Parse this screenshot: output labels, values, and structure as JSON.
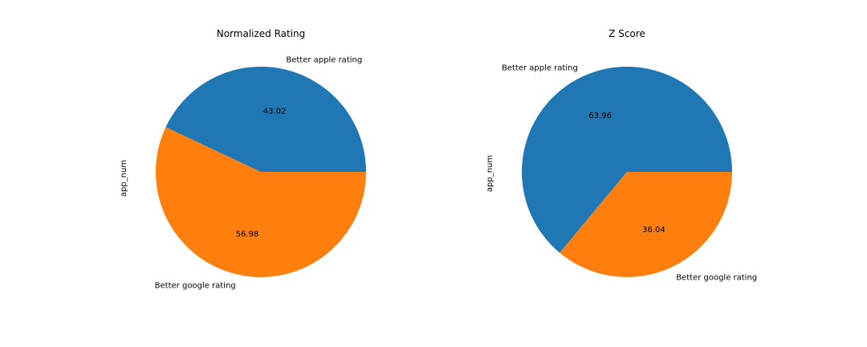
{
  "chart_data": [
    {
      "type": "pie",
      "title": "Normalized Rating",
      "ylabel": "app_num",
      "categories": [
        "Better apple rating",
        "Better google rating"
      ],
      "values": [
        43.02,
        56.98
      ],
      "labels_pct": [
        "43.02",
        "56.98"
      ],
      "colors": [
        "#1f77b4",
        "#ff7f0e"
      ],
      "start_angle_deg": 0,
      "direction": "counterclockwise"
    },
    {
      "type": "pie",
      "title": "Z Score",
      "ylabel": "app_num",
      "categories": [
        "Better apple rating",
        "Better google rating"
      ],
      "values": [
        63.96,
        36.04
      ],
      "labels_pct": [
        "63.96",
        "36.04"
      ],
      "colors": [
        "#1f77b4",
        "#ff7f0e"
      ],
      "start_angle_deg": 0,
      "direction": "counterclockwise"
    }
  ]
}
